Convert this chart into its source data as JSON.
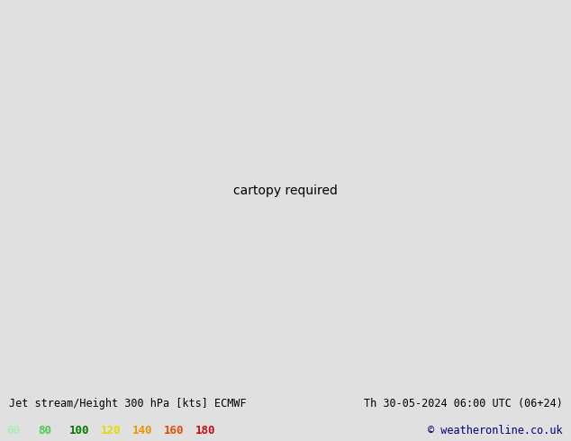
{
  "title_left": "Jet stream/Height 300 hPa [kts] ECMWF",
  "title_right": "Th 30-05-2024 06:00 UTC (06+24)",
  "copyright": "© weatheronline.co.uk",
  "legend_values": [
    "60",
    "80",
    "100",
    "120",
    "140",
    "160",
    "180"
  ],
  "legend_colors": [
    "#aaf0aa",
    "#50c850",
    "#007800",
    "#e8d800",
    "#e89600",
    "#e05000",
    "#c01010"
  ],
  "background_color": "#e0e0e0",
  "land_color": "#d2cebc",
  "ocean_color": "#e8e8e8",
  "border_color": "#888878",
  "state_color": "#aaaaaa",
  "contour_color": "#000000",
  "bottom_bar_color": "#d0d0d0",
  "title_color": "#000000",
  "copyright_color": "#000080",
  "title_fontsize": 8.5,
  "legend_fontsize": 8,
  "figsize": [
    6.34,
    4.9
  ],
  "dpi": 100,
  "map_extent": [
    -180,
    -30,
    15,
    80
  ],
  "jet_60_color": "#c8f5c8",
  "jet_80_color": "#78d878",
  "jet_100_color": "#20a020",
  "jet_120_color": "#f0e020",
  "jet_140_color": "#f09020",
  "jet_160_color": "#e05020",
  "jet_180_color": "#c01010"
}
